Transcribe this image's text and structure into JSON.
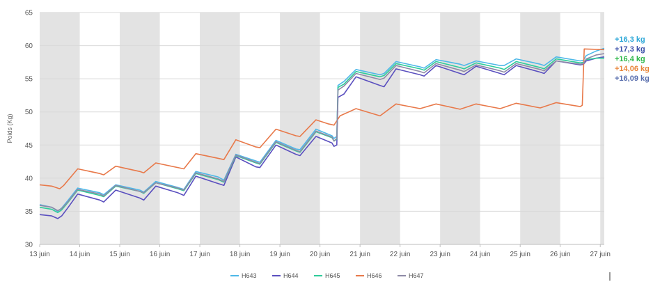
{
  "chart_data": {
    "type": "line",
    "title": "",
    "ylabel": "Poids (Kg)",
    "xlabel": "",
    "ylim": [
      30,
      65
    ],
    "yticks": [
      30,
      35,
      40,
      45,
      50,
      55,
      60,
      65
    ],
    "xlim": [
      13,
      27.1
    ],
    "xtick_labels": [
      "13 juin",
      "14 juin",
      "15 juin",
      "16 juin",
      "17 juin",
      "18 juin",
      "19 juin",
      "20 juin",
      "21 juin",
      "22 juin",
      "23 juin",
      "24 juin",
      "25 juin",
      "26 juin",
      "27 juin"
    ],
    "night_bands": [
      [
        13,
        14
      ],
      [
        15,
        16
      ],
      [
        17,
        18
      ],
      [
        19,
        20
      ],
      [
        21,
        22
      ],
      [
        23,
        24
      ],
      [
        25,
        26
      ],
      [
        27,
        27.1
      ]
    ],
    "grid": true,
    "legend_position": "bottom",
    "series": [
      {
        "name": "H643",
        "color": "#4DB8E8",
        "x": [
          13,
          13.3,
          13.45,
          13.55,
          13.7,
          13.95,
          14.5,
          14.6,
          14.9,
          15.5,
          15.6,
          15.9,
          16.45,
          16.6,
          16.9,
          17.45,
          17.6,
          17.9,
          18.4,
          18.5,
          18.9,
          19.4,
          19.5,
          19.9,
          20.3,
          20.35,
          20.42,
          20.45,
          20.6,
          20.9,
          21.5,
          21.6,
          21.9,
          22.5,
          22.6,
          22.9,
          23.5,
          23.6,
          23.9,
          24.5,
          24.6,
          24.9,
          25.5,
          25.6,
          25.9,
          26.5,
          26.58,
          26.65,
          26.9,
          27.1
        ],
        "y": [
          36,
          35.6,
          35,
          35.5,
          36.6,
          38.5,
          37.8,
          37.5,
          39,
          38.2,
          37.9,
          39.5,
          38.6,
          38.3,
          41,
          40.2,
          39.7,
          43.6,
          42.6,
          42.4,
          45.7,
          44.4,
          44.3,
          47.4,
          46.4,
          46,
          46.3,
          54,
          54.6,
          56.4,
          55.6,
          55.8,
          57.6,
          56.8,
          56.6,
          57.9,
          57.2,
          57,
          57.7,
          57,
          57,
          58,
          57.2,
          57,
          58.3,
          57.7,
          57.8,
          58.5,
          59.2,
          59.6
        ]
      },
      {
        "name": "H644",
        "color": "#5A4FBF",
        "x": [
          13,
          13.3,
          13.45,
          13.55,
          13.7,
          13.95,
          14.5,
          14.6,
          14.9,
          15.5,
          15.6,
          15.9,
          16.45,
          16.6,
          16.9,
          17.45,
          17.6,
          17.9,
          18.4,
          18.5,
          18.9,
          19.4,
          19.5,
          19.9,
          20.3,
          20.35,
          20.42,
          20.45,
          20.6,
          20.9,
          21.5,
          21.6,
          21.9,
          22.5,
          22.6,
          22.9,
          23.5,
          23.6,
          23.9,
          24.5,
          24.6,
          24.9,
          25.5,
          25.6,
          25.9,
          26.5,
          26.58,
          26.65,
          26.9,
          27.1
        ],
        "y": [
          34.5,
          34.3,
          33.9,
          34.3,
          35.5,
          37.6,
          36.7,
          36.4,
          38.2,
          37,
          36.7,
          38.8,
          37.8,
          37.4,
          40.3,
          39.2,
          38.9,
          43.2,
          41.7,
          41.6,
          45,
          43.6,
          43.4,
          46.3,
          45.3,
          44.8,
          45,
          52.2,
          52.7,
          55.3,
          54,
          53.8,
          56.5,
          55.6,
          55.4,
          57,
          55.8,
          55.6,
          56.9,
          55.8,
          55.6,
          57,
          56,
          55.8,
          57.7,
          57.1,
          57.2,
          57.7,
          58.1,
          58.3
        ]
      },
      {
        "name": "H645",
        "color": "#2ECC9A",
        "x": [
          13,
          13.3,
          13.45,
          13.55,
          13.7,
          13.95,
          14.5,
          14.6,
          14.9,
          15.5,
          15.6,
          15.9,
          16.45,
          16.6,
          16.9,
          17.45,
          17.6,
          17.9,
          18.4,
          18.5,
          18.9,
          19.4,
          19.5,
          19.9,
          20.3,
          20.35,
          20.42,
          20.45,
          20.6,
          20.9,
          21.5,
          21.6,
          21.9,
          22.5,
          22.6,
          22.9,
          23.5,
          23.6,
          23.9,
          24.5,
          24.6,
          24.9,
          25.5,
          25.6,
          25.9,
          26.5,
          26.58,
          26.65,
          26.9,
          27.1
        ],
        "y": [
          35.6,
          35.3,
          34.8,
          35.2,
          36.3,
          38.2,
          37.4,
          37.2,
          38.8,
          38,
          37.7,
          39.3,
          38.4,
          38.1,
          40.7,
          39.8,
          39.4,
          43.4,
          42.3,
          42.1,
          45.4,
          44.1,
          43.9,
          47,
          46.1,
          45.6,
          45.9,
          53.7,
          54.2,
          56.1,
          55.3,
          55.5,
          57.3,
          56.5,
          56.3,
          57.6,
          56.7,
          56.5,
          57.4,
          56.6,
          56.4,
          57.6,
          56.7,
          56.5,
          58,
          57.4,
          57.5,
          57.9,
          58.1,
          58.1
        ]
      },
      {
        "name": "H646",
        "color": "#E8794A",
        "x": [
          13,
          13.3,
          13.5,
          13.6,
          13.95,
          14.5,
          14.6,
          14.9,
          15.5,
          15.6,
          15.9,
          16.45,
          16.6,
          16.9,
          17.45,
          17.6,
          17.9,
          18.4,
          18.5,
          18.9,
          19.4,
          19.5,
          19.9,
          20.2,
          20.35,
          20.5,
          20.9,
          21.5,
          21.9,
          22.5,
          22.9,
          23.5,
          23.9,
          24.5,
          24.9,
          25.5,
          25.9,
          26.5,
          26.55,
          26.6,
          27.1
        ],
        "y": [
          39,
          38.8,
          38.4,
          38.9,
          41.4,
          40.7,
          40.5,
          41.8,
          41,
          40.8,
          42.3,
          41.6,
          41.4,
          43.7,
          43,
          42.8,
          45.8,
          44.7,
          44.6,
          47.4,
          46.4,
          46.3,
          48.8,
          48.2,
          48,
          49.4,
          50.5,
          49.4,
          51.2,
          50.5,
          51.2,
          50.4,
          51.2,
          50.5,
          51.3,
          50.6,
          51.4,
          50.8,
          51,
          59.5,
          59.4
        ]
      },
      {
        "name": "H647",
        "color": "#8E8AA6",
        "x": [
          13,
          13.3,
          13.45,
          13.55,
          13.7,
          13.95,
          14.5,
          14.6,
          14.9,
          15.5,
          15.6,
          15.9,
          16.45,
          16.6,
          16.9,
          17.45,
          17.6,
          17.9,
          18.4,
          18.5,
          18.9,
          19.4,
          19.5,
          19.9,
          20.3,
          20.35,
          20.42,
          20.45,
          20.6,
          20.9,
          21.5,
          21.6,
          21.9,
          22.5,
          22.6,
          22.9,
          23.5,
          23.6,
          23.9,
          24.5,
          24.6,
          24.9,
          25.5,
          25.6,
          25.9,
          26.5,
          26.58,
          26.65,
          26.9,
          27.1
        ],
        "y": [
          35.9,
          35.6,
          35.1,
          35.4,
          36.4,
          38.3,
          37.6,
          37.3,
          38.9,
          38,
          37.8,
          39.3,
          38.5,
          38.2,
          40.8,
          39.9,
          39.5,
          43.5,
          42.4,
          42.2,
          45.5,
          44.2,
          44,
          47.1,
          46.2,
          45.6,
          46,
          53.3,
          53.9,
          55.8,
          54.9,
          55.1,
          57,
          56.1,
          55.9,
          57.3,
          56.3,
          56.1,
          57.1,
          56.2,
          56,
          57.3,
          56.4,
          56.2,
          57.7,
          57.2,
          57.3,
          58,
          58.6,
          58.8
        ]
      }
    ],
    "annotations": [
      {
        "text": "+16,3 kg",
        "color": "#2EA8D8"
      },
      {
        "text": "+17,3 kg",
        "color": "#3A4FA8"
      },
      {
        "text": "+16,4 kg",
        "color": "#2FB84A"
      },
      {
        "text": "+14,06 kg",
        "color": "#E8853A"
      },
      {
        "text": "+16,09 kg",
        "color": "#5A6FAE"
      }
    ]
  }
}
